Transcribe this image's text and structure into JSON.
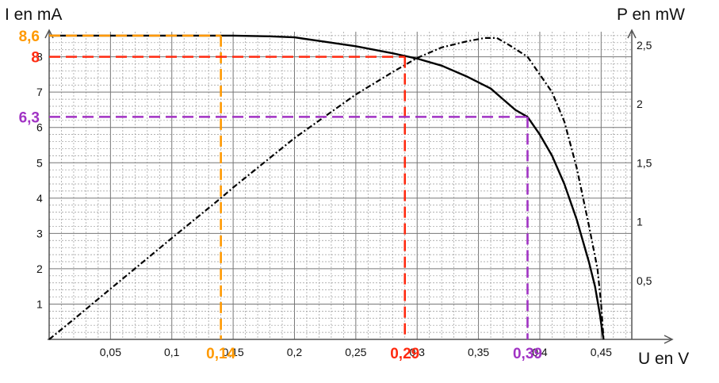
{
  "chart_data": {
    "type": "line",
    "xlabel": "U en V",
    "ylabel_left": "I en mA",
    "ylabel_right": "P en mW",
    "xlim": [
      0,
      0.475
    ],
    "ylim_left": [
      0,
      8.8
    ],
    "ylim_right": [
      0,
      2.64
    ],
    "x_ticks": [
      {
        "value": 0.05,
        "label": "0,05"
      },
      {
        "value": 0.1,
        "label": "0,1"
      },
      {
        "value": 0.15,
        "label": "0,15"
      },
      {
        "value": 0.2,
        "label": "0,2"
      },
      {
        "value": 0.25,
        "label": "0,25"
      },
      {
        "value": 0.3,
        "label": "0,3"
      },
      {
        "value": 0.35,
        "label": "0,35"
      },
      {
        "value": 0.4,
        "label": "0,4"
      },
      {
        "value": 0.45,
        "label": "0,45"
      }
    ],
    "y_ticks_left": [
      {
        "value": 1,
        "label": "1"
      },
      {
        "value": 2,
        "label": "2"
      },
      {
        "value": 3,
        "label": "3"
      },
      {
        "value": 4,
        "label": "4"
      },
      {
        "value": 5,
        "label": "5"
      },
      {
        "value": 6,
        "label": "6"
      },
      {
        "value": 7,
        "label": "7"
      },
      {
        "value": 8,
        "label": "8"
      }
    ],
    "y_ticks_right": [
      {
        "value": 0.5,
        "label": "0,5"
      },
      {
        "value": 1,
        "label": "1"
      },
      {
        "value": 1.5,
        "label": "1,5"
      },
      {
        "value": 2,
        "label": "2"
      },
      {
        "value": 2.5,
        "label": "2,5"
      }
    ],
    "grid": "on",
    "series": [
      {
        "axis": "left",
        "style": "solid",
        "color": "#000000",
        "points": [
          [
            0,
            8.6
          ],
          [
            0.05,
            8.6
          ],
          [
            0.1,
            8.6
          ],
          [
            0.15,
            8.6
          ],
          [
            0.18,
            8.58
          ],
          [
            0.2,
            8.55
          ],
          [
            0.22,
            8.45
          ],
          [
            0.25,
            8.3
          ],
          [
            0.28,
            8.1
          ],
          [
            0.3,
            7.95
          ],
          [
            0.32,
            7.75
          ],
          [
            0.34,
            7.45
          ],
          [
            0.36,
            7.1
          ],
          [
            0.37,
            6.8
          ],
          [
            0.38,
            6.5
          ],
          [
            0.39,
            6.3
          ],
          [
            0.4,
            5.8
          ],
          [
            0.41,
            5.2
          ],
          [
            0.42,
            4.4
          ],
          [
            0.43,
            3.4
          ],
          [
            0.44,
            2.2
          ],
          [
            0.445,
            1.5
          ],
          [
            0.449,
            0.7
          ],
          [
            0.451,
            0.2
          ],
          [
            0.452,
            0
          ]
        ]
      },
      {
        "axis": "right",
        "style": "dashed",
        "color": "#000000",
        "points": [
          [
            0,
            0
          ],
          [
            0.02,
            0.17
          ],
          [
            0.05,
            0.43
          ],
          [
            0.1,
            0.86
          ],
          [
            0.14,
            1.2
          ],
          [
            0.15,
            1.29
          ],
          [
            0.2,
            1.71
          ],
          [
            0.25,
            2.08
          ],
          [
            0.28,
            2.27
          ],
          [
            0.3,
            2.39
          ],
          [
            0.32,
            2.48
          ],
          [
            0.34,
            2.53
          ],
          [
            0.355,
            2.56
          ],
          [
            0.365,
            2.56
          ],
          [
            0.375,
            2.5
          ],
          [
            0.39,
            2.4
          ],
          [
            0.4,
            2.25
          ],
          [
            0.41,
            2.1
          ],
          [
            0.42,
            1.85
          ],
          [
            0.43,
            1.46
          ],
          [
            0.44,
            0.97
          ],
          [
            0.447,
            0.6
          ],
          [
            0.45,
            0.3
          ],
          [
            0.452,
            0
          ]
        ]
      }
    ],
    "annotations": [
      {
        "label": "8,6",
        "color": "#FF9900",
        "x": 0.14,
        "y": 8.6,
        "x_label": "0,14"
      },
      {
        "label": "8",
        "color": "#FF2A10",
        "x": 0.29,
        "y": 8,
        "x_label": "0,29"
      },
      {
        "label": "6,3",
        "color": "#A133C4",
        "x": 0.39,
        "y": 6.3,
        "x_label": "0,39"
      }
    ]
  }
}
